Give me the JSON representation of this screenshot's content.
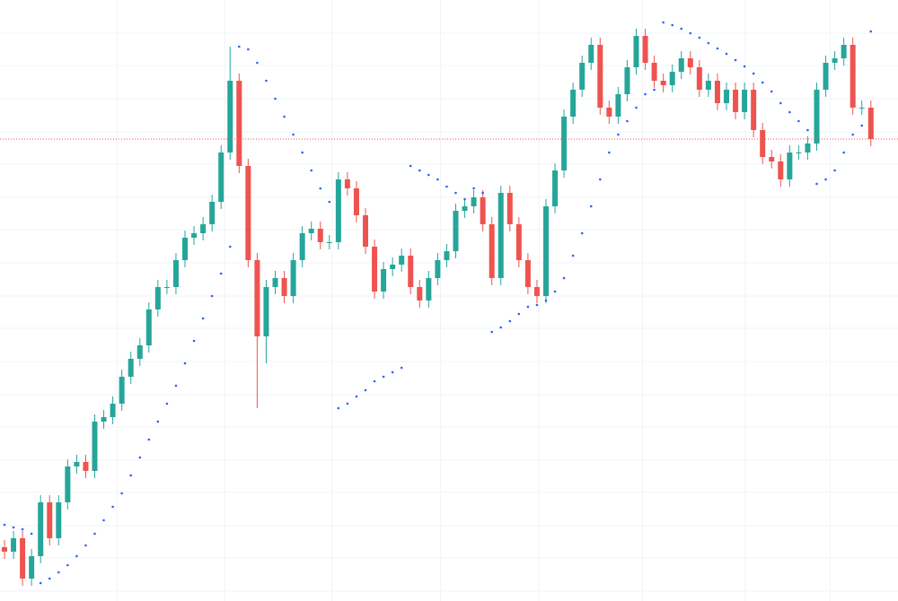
{
  "chart_data": {
    "type": "candlestick",
    "open": [
      60,
      55,
      70,
      25,
      50,
      110,
      70,
      110,
      150,
      155,
      145,
      200,
      205,
      220,
      250,
      270,
      285,
      325,
      350,
      350,
      380,
      405,
      410,
      420,
      445,
      500,
      580,
      485,
      380,
      295,
      350,
      360,
      340,
      380,
      410,
      415,
      400,
      400,
      470,
      460,
      430,
      395,
      345,
      370,
      375,
      385,
      350,
      335,
      360,
      380,
      390,
      435,
      440,
      450,
      420,
      360,
      455,
      420,
      380,
      350,
      340,
      440,
      480,
      540,
      570,
      600,
      620,
      550,
      540,
      565,
      595,
      630,
      600,
      580,
      575,
      590,
      605,
      595,
      570,
      580,
      555,
      570,
      545,
      570,
      525,
      495,
      490,
      470,
      500,
      500,
      510,
      570,
      600,
      605,
      620,
      550,
      550
    ],
    "high": [
      68,
      78,
      78,
      58,
      118,
      118,
      118,
      158,
      163,
      163,
      208,
      213,
      228,
      258,
      278,
      293,
      333,
      358,
      358,
      388,
      413,
      418,
      428,
      453,
      508,
      618,
      588,
      493,
      388,
      358,
      368,
      368,
      388,
      418,
      423,
      423,
      408,
      478,
      478,
      468,
      438,
      403,
      378,
      383,
      393,
      393,
      358,
      368,
      388,
      398,
      443,
      448,
      458,
      458,
      428,
      463,
      463,
      428,
      388,
      358,
      448,
      488,
      548,
      578,
      608,
      628,
      628,
      558,
      573,
      603,
      638,
      638,
      608,
      588,
      598,
      613,
      613,
      603,
      588,
      588,
      578,
      578,
      578,
      578,
      533,
      503,
      498,
      508,
      508,
      518,
      578,
      608,
      613,
      628,
      628,
      558,
      558
    ],
    "low": [
      47,
      47,
      17,
      17,
      42,
      62,
      62,
      102,
      142,
      137,
      137,
      192,
      197,
      212,
      242,
      262,
      277,
      317,
      342,
      342,
      372,
      397,
      402,
      412,
      437,
      492,
      477,
      372,
      215,
      265,
      342,
      332,
      332,
      372,
      402,
      392,
      392,
      392,
      452,
      422,
      387,
      337,
      337,
      362,
      367,
      342,
      327,
      327,
      352,
      372,
      382,
      427,
      432,
      412,
      352,
      352,
      412,
      372,
      342,
      332,
      332,
      432,
      472,
      532,
      562,
      592,
      542,
      532,
      532,
      557,
      587,
      592,
      572,
      567,
      567,
      582,
      587,
      562,
      562,
      547,
      547,
      537,
      537,
      517,
      487,
      482,
      462,
      462,
      492,
      492,
      502,
      562,
      592,
      597,
      542,
      542,
      507
    ],
    "close": [
      55,
      70,
      25,
      50,
      110,
      70,
      110,
      150,
      155,
      145,
      200,
      205,
      220,
      250,
      270,
      285,
      325,
      350,
      350,
      380,
      405,
      410,
      420,
      445,
      500,
      580,
      485,
      380,
      295,
      350,
      360,
      340,
      380,
      410,
      415,
      400,
      400,
      470,
      460,
      430,
      395,
      345,
      370,
      375,
      385,
      350,
      335,
      360,
      380,
      390,
      435,
      440,
      450,
      420,
      360,
      455,
      420,
      380,
      350,
      340,
      440,
      480,
      540,
      570,
      600,
      620,
      550,
      540,
      565,
      595,
      630,
      600,
      580,
      575,
      590,
      605,
      595,
      570,
      580,
      555,
      570,
      545,
      570,
      525,
      495,
      490,
      470,
      500,
      500,
      510,
      570,
      600,
      605,
      620,
      550,
      550,
      515
    ],
    "sar": [
      85,
      82,
      80,
      75,
      20,
      25,
      32,
      40,
      50,
      62,
      75,
      90,
      105,
      120,
      140,
      160,
      180,
      200,
      220,
      240,
      265,
      290,
      315,
      340,
      365,
      395,
      618,
      615,
      600,
      580,
      560,
      540,
      520,
      500,
      480,
      460,
      445,
      215,
      220,
      228,
      235,
      245,
      250,
      255,
      260,
      485,
      480,
      475,
      470,
      462,
      455,
      448,
      460,
      455,
      300,
      305,
      312,
      320,
      328,
      330,
      335,
      345,
      360,
      385,
      410,
      440,
      470,
      500,
      520,
      535,
      550,
      565,
      570,
      645,
      642,
      638,
      633,
      628,
      622,
      616,
      610,
      603,
      596,
      588,
      578,
      568,
      555,
      545,
      535,
      525,
      465,
      470,
      480,
      500,
      520,
      530,
      635
    ],
    "up_color": "#26a69a",
    "down_color": "#ef5350",
    "sar_color": "#2962ff",
    "ylim": [
      0,
      670
    ],
    "yticks": [
      11,
      48,
      84,
      121,
      157,
      194,
      230,
      267,
      304,
      340,
      377,
      414,
      450,
      487,
      523,
      560,
      597,
      633
    ],
    "xticks": [
      12.5,
      24.4,
      36.3,
      48.3,
      59.2,
      70.7,
      82.1,
      91.5
    ],
    "grid": true,
    "last_price_line": true
  }
}
